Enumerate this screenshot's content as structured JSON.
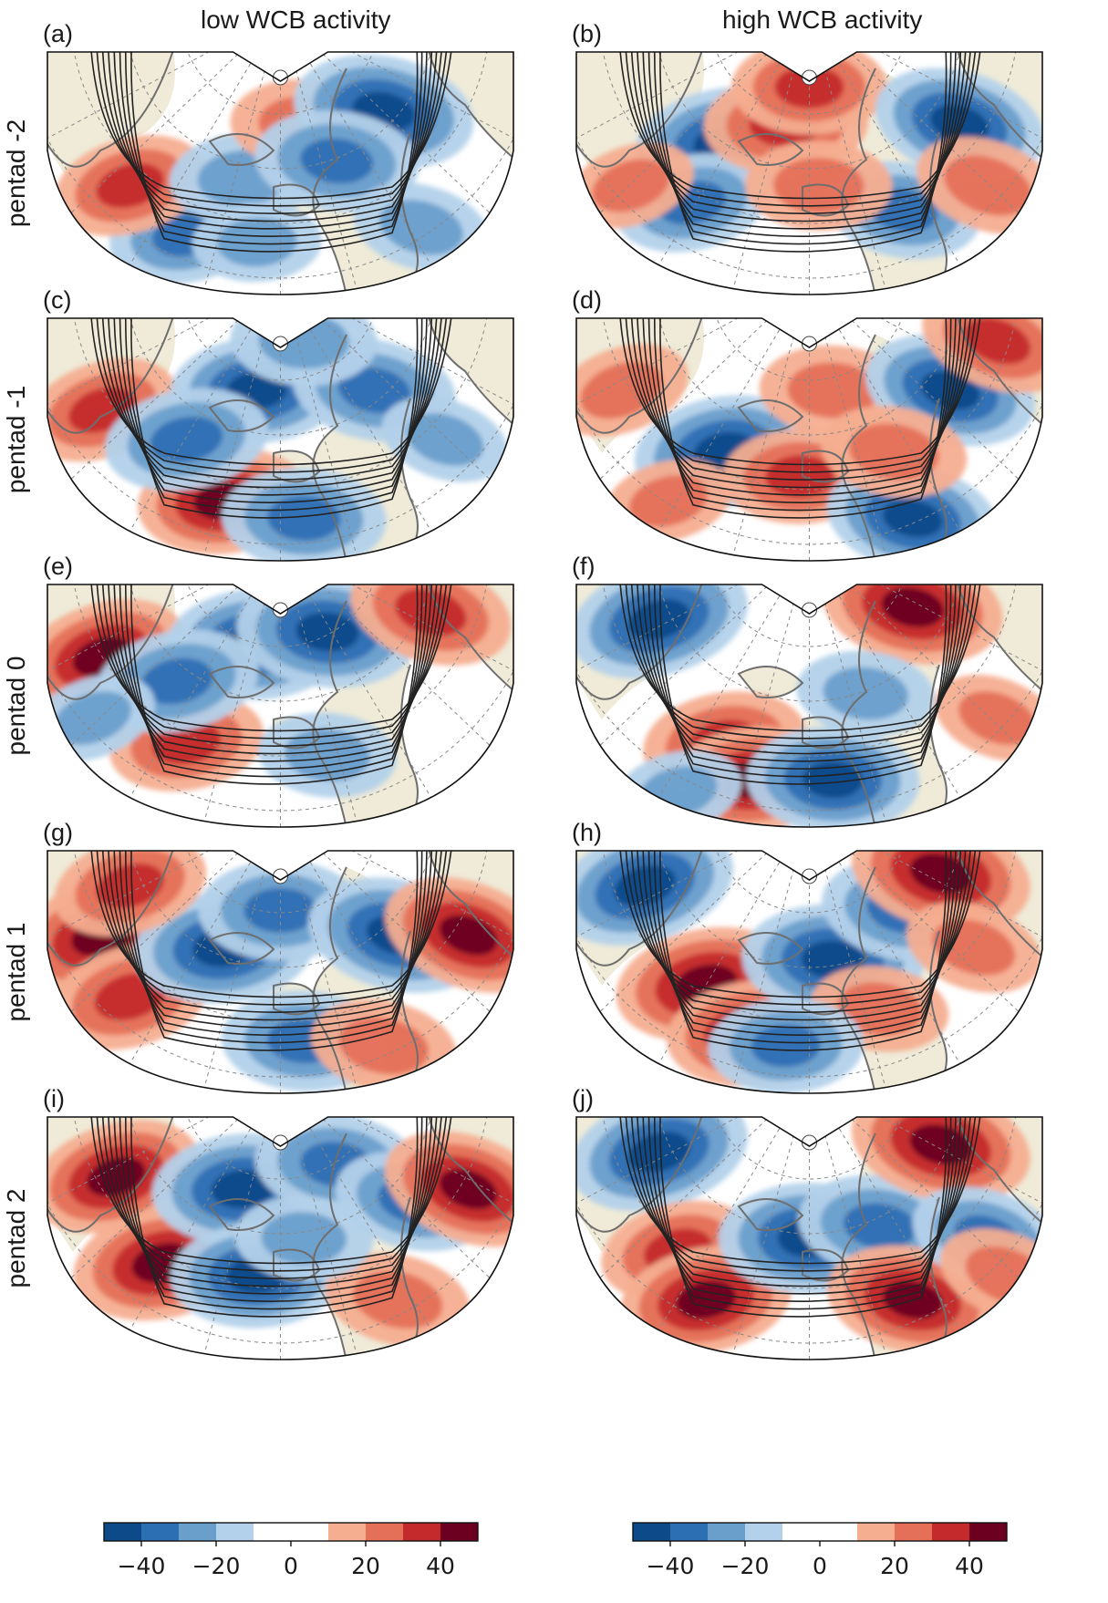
{
  "column_titles": [
    "low WCB activity",
    "high WCB activity"
  ],
  "row_labels": [
    "pentad -2",
    "pentad -1",
    "pentad 0",
    "pentad 1",
    "pentad 2"
  ],
  "panels": [
    {
      "letter": "(a)",
      "row": 0,
      "col": 0,
      "anoms": [
        [
          0.3,
          0.75,
          -0.7
        ],
        [
          0.18,
          0.55,
          0.7
        ],
        [
          0.42,
          0.52,
          -0.6
        ],
        [
          0.55,
          0.3,
          0.6
        ],
        [
          0.72,
          0.25,
          -1.0
        ],
        [
          0.62,
          0.45,
          -0.8
        ],
        [
          0.45,
          0.78,
          -0.4
        ],
        [
          0.8,
          0.72,
          -0.5
        ]
      ]
    },
    {
      "letter": "(b)",
      "row": 0,
      "col": 1,
      "anoms": [
        [
          0.32,
          0.38,
          -1.0
        ],
        [
          0.25,
          0.62,
          -0.7
        ],
        [
          0.45,
          0.3,
          0.8
        ],
        [
          0.5,
          0.15,
          0.7
        ],
        [
          0.7,
          0.65,
          -0.7
        ],
        [
          0.82,
          0.3,
          -0.9
        ],
        [
          0.88,
          0.55,
          0.6
        ],
        [
          0.12,
          0.55,
          0.4
        ],
        [
          0.52,
          0.55,
          0.6
        ]
      ]
    },
    {
      "letter": "(c)",
      "row": 1,
      "col": 0,
      "anoms": [
        [
          0.12,
          0.38,
          0.7
        ],
        [
          0.38,
          0.75,
          0.9
        ],
        [
          0.55,
          0.82,
          -0.8
        ],
        [
          0.45,
          0.3,
          -0.9
        ],
        [
          0.3,
          0.5,
          -0.8
        ],
        [
          0.7,
          0.3,
          -0.8
        ],
        [
          0.55,
          0.1,
          -0.6
        ],
        [
          0.85,
          0.5,
          -0.4
        ]
      ]
    },
    {
      "letter": "(d)",
      "row": 1,
      "col": 1,
      "anoms": [
        [
          0.32,
          0.55,
          -1.0
        ],
        [
          0.55,
          0.3,
          0.6
        ],
        [
          0.48,
          0.65,
          0.7
        ],
        [
          0.8,
          0.3,
          -0.9
        ],
        [
          0.72,
          0.82,
          -0.9
        ],
        [
          0.68,
          0.55,
          0.6
        ],
        [
          0.1,
          0.3,
          0.5
        ],
        [
          0.9,
          0.1,
          0.7
        ],
        [
          0.2,
          0.75,
          0.4
        ]
      ]
    },
    {
      "letter": "(e)",
      "row": 2,
      "col": 0,
      "anoms": [
        [
          0.12,
          0.3,
          0.9
        ],
        [
          0.3,
          0.65,
          0.7
        ],
        [
          0.45,
          0.25,
          -1.0
        ],
        [
          0.6,
          0.2,
          -1.0
        ],
        [
          0.28,
          0.4,
          -0.8
        ],
        [
          0.82,
          0.12,
          0.8
        ],
        [
          0.6,
          0.7,
          -0.5
        ],
        [
          0.1,
          0.55,
          -0.4
        ]
      ]
    },
    {
      "letter": "(f)",
      "row": 2,
      "col": 1,
      "anoms": [
        [
          0.18,
          0.15,
          -1.0
        ],
        [
          0.32,
          0.65,
          0.8
        ],
        [
          0.38,
          0.8,
          0.9
        ],
        [
          0.55,
          0.8,
          -0.9
        ],
        [
          0.72,
          0.1,
          1.0
        ],
        [
          0.62,
          0.45,
          -0.5
        ],
        [
          0.9,
          0.55,
          0.4
        ],
        [
          0.22,
          0.85,
          -0.4
        ]
      ]
    },
    {
      "letter": "(g)",
      "row": 3,
      "col": 0,
      "anoms": [
        [
          0.12,
          0.35,
          1.0
        ],
        [
          0.18,
          0.6,
          0.8
        ],
        [
          0.38,
          0.4,
          -1.0
        ],
        [
          0.5,
          0.25,
          -0.8
        ],
        [
          0.75,
          0.35,
          -1.0
        ],
        [
          0.9,
          0.35,
          0.9
        ],
        [
          0.55,
          0.78,
          -0.8
        ],
        [
          0.72,
          0.8,
          0.6
        ],
        [
          0.18,
          0.15,
          0.7
        ]
      ]
    },
    {
      "letter": "(h)",
      "row": 3,
      "col": 1,
      "anoms": [
        [
          0.15,
          0.15,
          -1.0
        ],
        [
          0.28,
          0.55,
          1.0
        ],
        [
          0.38,
          0.75,
          0.9
        ],
        [
          0.55,
          0.45,
          -1.0
        ],
        [
          0.7,
          0.25,
          -0.8
        ],
        [
          0.78,
          0.1,
          1.0
        ],
        [
          0.85,
          0.4,
          0.5
        ],
        [
          0.65,
          0.65,
          0.5
        ],
        [
          0.45,
          0.8,
          -0.7
        ]
      ]
    },
    {
      "letter": "(i)",
      "row": 4,
      "col": 0,
      "anoms": [
        [
          0.15,
          0.25,
          0.9
        ],
        [
          0.25,
          0.6,
          1.0
        ],
        [
          0.42,
          0.3,
          -1.0
        ],
        [
          0.45,
          0.65,
          -0.9
        ],
        [
          0.62,
          0.2,
          -0.8
        ],
        [
          0.78,
          0.35,
          -0.7
        ],
        [
          0.9,
          0.3,
          0.9
        ],
        [
          0.75,
          0.75,
          0.6
        ],
        [
          0.55,
          0.5,
          -0.5
        ]
      ]
    },
    {
      "letter": "(j)",
      "row": 4,
      "col": 1,
      "anoms": [
        [
          0.18,
          0.15,
          -1.0
        ],
        [
          0.22,
          0.55,
          0.7
        ],
        [
          0.28,
          0.75,
          0.9
        ],
        [
          0.5,
          0.5,
          -1.0
        ],
        [
          0.65,
          0.45,
          -0.8
        ],
        [
          0.72,
          0.75,
          0.9
        ],
        [
          0.78,
          0.12,
          1.0
        ],
        [
          0.88,
          0.5,
          -0.7
        ],
        [
          0.92,
          0.65,
          0.5
        ]
      ]
    }
  ],
  "colorbars": [
    {
      "ticks": [
        "−40",
        "−20",
        "0",
        "20",
        "40"
      ],
      "vmin": -50,
      "vmax": 50
    },
    {
      "ticks": [
        "−40",
        "−20",
        "0",
        "20",
        "40"
      ],
      "vmin": -50,
      "vmax": 50
    }
  ],
  "colors": {
    "levels": [
      "#0d4a8a",
      "#2d6fb3",
      "#6a9fcc",
      "#b3d1ea",
      "#ffffff",
      "#ffffff",
      "#f5ae90",
      "#e5705a",
      "#c42a2c",
      "#6b0020"
    ],
    "land": "#efebd8",
    "contour": "#222222",
    "coast": "#6e6e6e",
    "grid": "#888888"
  }
}
